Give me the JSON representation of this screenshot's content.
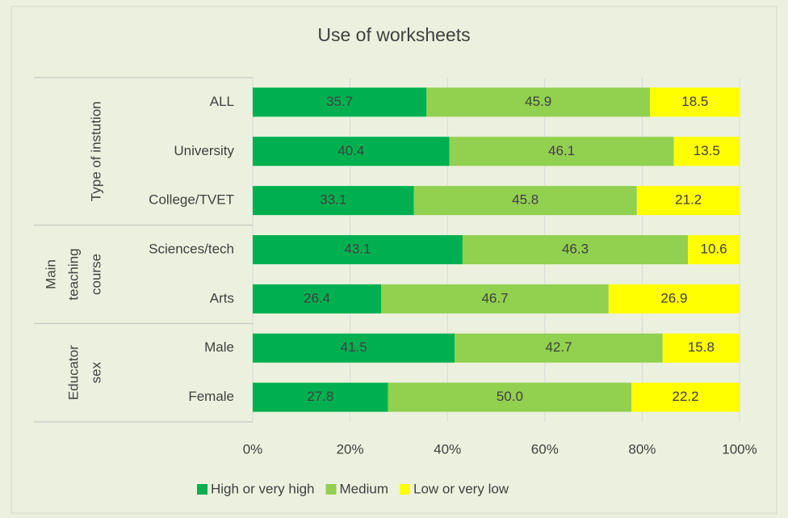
{
  "chart_data": {
    "type": "stacked-bar-horizontal",
    "title": "Use of worksheets",
    "groups": [
      {
        "label": [
          "Type of instution"
        ],
        "categories": [
          "ALL",
          "University",
          "College/TVET"
        ]
      },
      {
        "label": [
          "Main",
          "teaching",
          "course"
        ],
        "categories": [
          "Sciences/tech",
          "Arts"
        ]
      },
      {
        "label": [
          "Educator",
          "sex"
        ],
        "categories": [
          "Male",
          "Female"
        ]
      }
    ],
    "series": [
      {
        "name": "High or very high",
        "color": "#00b050",
        "values": [
          35.7,
          40.4,
          33.1,
          43.1,
          26.4,
          41.5,
          27.8
        ],
        "value_labels": [
          "35.7",
          "40.4",
          "33.1",
          "43.1",
          "26.4",
          "41.5",
          "27.8"
        ]
      },
      {
        "name": "Medium",
        "color": "#92d050",
        "values": [
          45.9,
          46.1,
          45.8,
          46.3,
          46.7,
          42.7,
          50.0
        ],
        "value_labels": [
          "45.9",
          "46.1",
          "45.8",
          "46.3",
          "46.7",
          "42.7",
          "50.0"
        ]
      },
      {
        "name": "Low or very low",
        "color": "#ffff00",
        "values": [
          18.5,
          13.5,
          21.2,
          10.6,
          26.9,
          15.8,
          22.2
        ],
        "value_labels": [
          "18.5",
          "13.5",
          "21.2",
          "10.6",
          "26.9",
          "15.8",
          "22.2"
        ]
      }
    ],
    "xlim": [
      0,
      100
    ],
    "xticks": [
      {
        "value": 0,
        "label": "0%"
      },
      {
        "value": 20,
        "label": "20%"
      },
      {
        "value": 40,
        "label": "40%"
      },
      {
        "value": 60,
        "label": "60%"
      },
      {
        "value": 80,
        "label": "80%"
      },
      {
        "value": 100,
        "label": "100%"
      }
    ],
    "grid": true,
    "legend": "bottom"
  }
}
